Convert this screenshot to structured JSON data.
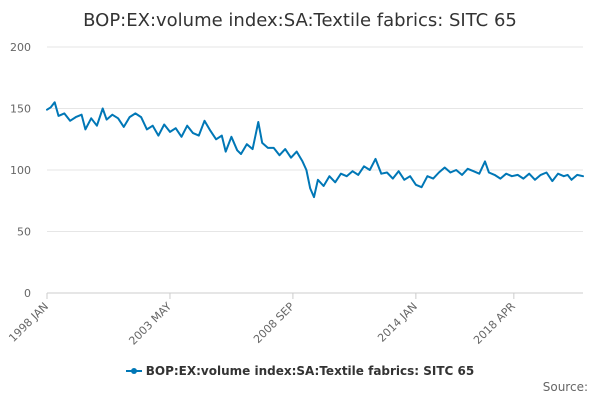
{
  "chart_data": {
    "type": "line",
    "title": "BOP:EX:volume index:SA:Textile fabrics: SITC 65",
    "xlabel": "",
    "ylabel": "",
    "ylim": [
      0,
      200
    ],
    "yticks": [
      0,
      50,
      100,
      150,
      200
    ],
    "xticks": [
      "1998 JAN",
      "2003 MAY",
      "2008 SEP",
      "2014 JAN",
      "2018 APR"
    ],
    "grid": true,
    "legend_position": "bottom",
    "series": [
      {
        "name": "BOP:EX:volume index:SA:Textile fabrics: SITC 65",
        "color": "#0077b6",
        "points": [
          [
            "1998-01",
            149
          ],
          [
            "1998-03",
            151
          ],
          [
            "1998-05",
            155
          ],
          [
            "1998-07",
            144
          ],
          [
            "1998-10",
            146
          ],
          [
            "1999-01",
            140
          ],
          [
            "1999-04",
            143
          ],
          [
            "1999-07",
            145
          ],
          [
            "1999-09",
            133
          ],
          [
            "1999-12",
            142
          ],
          [
            "2000-03",
            136
          ],
          [
            "2000-06",
            150
          ],
          [
            "2000-08",
            141
          ],
          [
            "2000-11",
            145
          ],
          [
            "2001-02",
            142
          ],
          [
            "2001-05",
            135
          ],
          [
            "2001-08",
            143
          ],
          [
            "2001-11",
            146
          ],
          [
            "2002-02",
            143
          ],
          [
            "2002-05",
            133
          ],
          [
            "2002-08",
            136
          ],
          [
            "2002-11",
            128
          ],
          [
            "2003-02",
            137
          ],
          [
            "2003-05",
            131
          ],
          [
            "2003-08",
            134
          ],
          [
            "2003-11",
            127
          ],
          [
            "2004-02",
            136
          ],
          [
            "2004-05",
            130
          ],
          [
            "2004-08",
            128
          ],
          [
            "2004-11",
            140
          ],
          [
            "2005-02",
            132
          ],
          [
            "2005-05",
            125
          ],
          [
            "2005-08",
            128
          ],
          [
            "2005-10",
            115
          ],
          [
            "2006-01",
            127
          ],
          [
            "2006-04",
            116
          ],
          [
            "2006-06",
            113
          ],
          [
            "2006-09",
            121
          ],
          [
            "2006-12",
            117
          ],
          [
            "2007-03",
            139
          ],
          [
            "2007-05",
            122
          ],
          [
            "2007-08",
            118
          ],
          [
            "2007-11",
            118
          ],
          [
            "2008-02",
            112
          ],
          [
            "2008-05",
            117
          ],
          [
            "2008-08",
            110
          ],
          [
            "2008-11",
            115
          ],
          [
            "2009-02",
            107
          ],
          [
            "2009-04",
            100
          ],
          [
            "2009-06",
            85
          ],
          [
            "2009-08",
            78
          ],
          [
            "2009-10",
            92
          ],
          [
            "2010-01",
            87
          ],
          [
            "2010-04",
            95
          ],
          [
            "2010-07",
            90
          ],
          [
            "2010-10",
            97
          ],
          [
            "2011-01",
            95
          ],
          [
            "2011-04",
            99
          ],
          [
            "2011-07",
            96
          ],
          [
            "2011-10",
            103
          ],
          [
            "2012-01",
            100
          ],
          [
            "2012-04",
            109
          ],
          [
            "2012-07",
            97
          ],
          [
            "2012-10",
            98
          ],
          [
            "2013-01",
            93
          ],
          [
            "2013-04",
            99
          ],
          [
            "2013-07",
            92
          ],
          [
            "2013-10",
            95
          ],
          [
            "2014-01",
            88
          ],
          [
            "2014-04",
            86
          ],
          [
            "2014-07",
            95
          ],
          [
            "2014-10",
            93
          ],
          [
            "2015-01",
            98
          ],
          [
            "2015-04",
            102
          ],
          [
            "2015-07",
            98
          ],
          [
            "2015-10",
            100
          ],
          [
            "2016-01",
            96
          ],
          [
            "2016-04",
            101
          ],
          [
            "2016-07",
            99
          ],
          [
            "2016-10",
            97
          ],
          [
            "2017-01",
            107
          ],
          [
            "2017-03",
            98
          ],
          [
            "2017-06",
            96
          ],
          [
            "2017-09",
            93
          ],
          [
            "2017-12",
            97
          ],
          [
            "2018-03",
            95
          ],
          [
            "2018-06",
            96
          ],
          [
            "2018-09",
            93
          ],
          [
            "2018-12",
            97
          ],
          [
            "2019-03",
            92
          ],
          [
            "2019-06",
            96
          ],
          [
            "2019-09",
            98
          ],
          [
            "2019-12",
            91
          ],
          [
            "2020-03",
            97
          ],
          [
            "2020-06",
            95
          ],
          [
            "2020-08",
            96
          ],
          [
            "2020-10",
            92
          ],
          [
            "2021-01",
            96
          ],
          [
            "2021-04",
            95
          ]
        ]
      }
    ]
  },
  "footer": {
    "source_label": "Source:"
  }
}
